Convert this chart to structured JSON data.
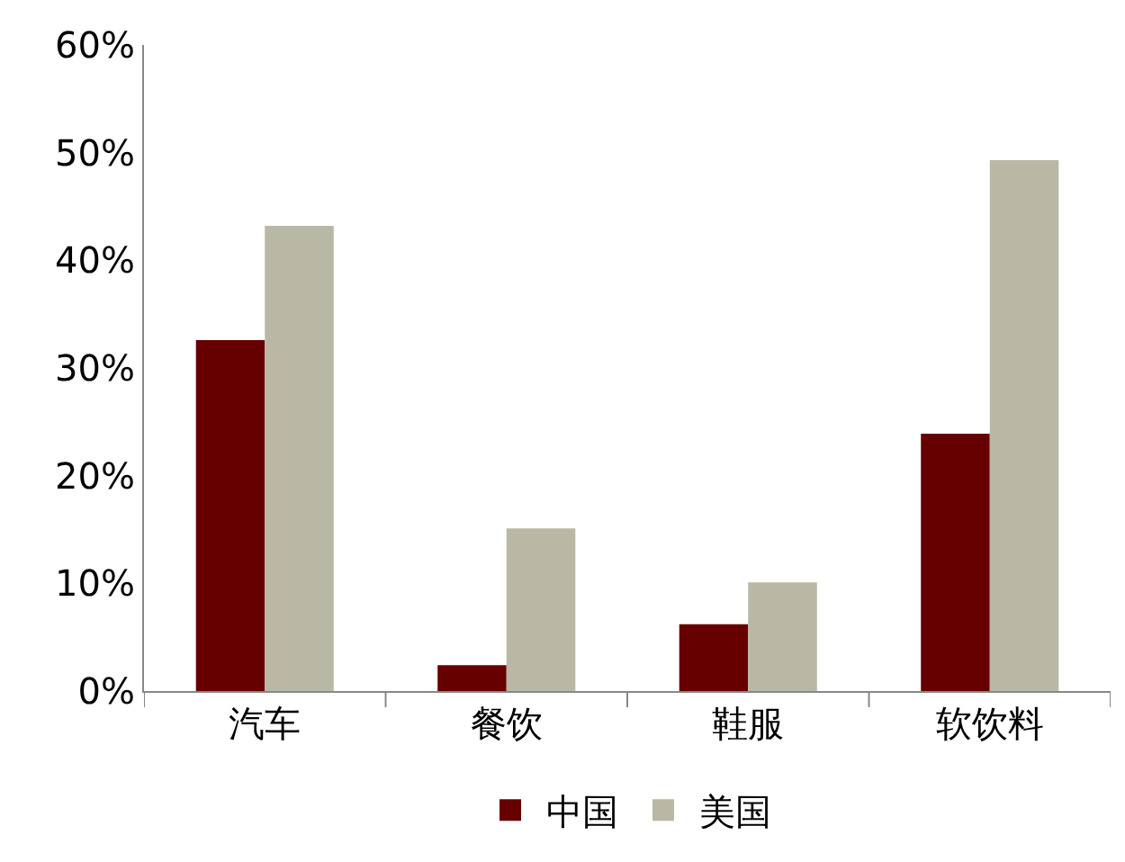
{
  "chart_data": {
    "type": "bar",
    "categories": [
      "汽车",
      "餐饮",
      "鞋服",
      "软饮料"
    ],
    "series": [
      {
        "name": "中国",
        "color": "#660000",
        "values": [
          32.6,
          2.4,
          6.2,
          23.9
        ]
      },
      {
        "name": "美国",
        "color": "#b9b8a5",
        "values": [
          43.2,
          15.1,
          10.1,
          49.3
        ]
      }
    ],
    "ylim": [
      0,
      60
    ],
    "yticks": [
      {
        "value": 0,
        "label": "0%"
      },
      {
        "value": 10,
        "label": "10%"
      },
      {
        "value": 20,
        "label": "20%"
      },
      {
        "value": 30,
        "label": "30%"
      },
      {
        "value": 40,
        "label": "40%"
      },
      {
        "value": 50,
        "label": "50%"
      },
      {
        "value": 60,
        "label": "60%"
      }
    ],
    "legend": "bottom"
  }
}
